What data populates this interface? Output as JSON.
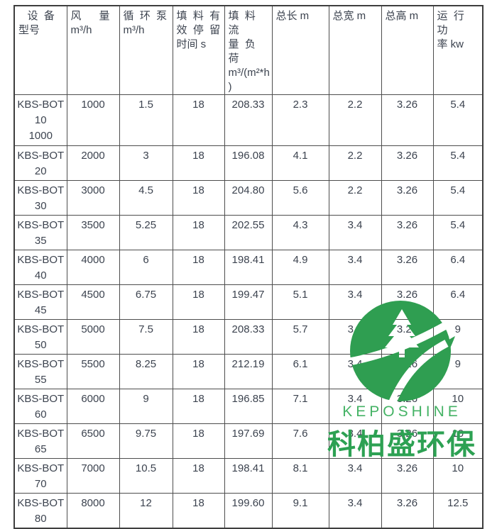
{
  "table": {
    "headers": [
      "   设  备\n型号",
      "风      量\nm³/h",
      "循  环  泵\nm³/h",
      "填  料  有\n效  停  留\n时间 s",
      "填  料  流\n量  负  荷\nm³/(m²*h\n)",
      "总长 m",
      "总宽 m",
      "总高 m",
      "运  行  功\n率 kw"
    ],
    "rows": [
      {
        "model": "KBS-BOT\n10\n1000",
        "values": [
          "1000",
          "1.5",
          "18",
          "208.33",
          "2.3",
          "2.2",
          "3.26",
          "5.4"
        ]
      },
      {
        "model": "KBS-BOT\n20",
        "values": [
          "2000",
          "3",
          "18",
          "196.08",
          "4.1",
          "2.2",
          "3.26",
          "5.4"
        ]
      },
      {
        "model": "KBS-BOT\n30",
        "values": [
          "3000",
          "4.5",
          "18",
          "204.80",
          "5.6",
          "2.2",
          "3.26",
          "5.4"
        ]
      },
      {
        "model": "KBS-BOT\n35",
        "values": [
          "3500",
          "5.25",
          "18",
          "202.55",
          "4.3",
          "3.4",
          "3.26",
          "5.4"
        ]
      },
      {
        "model": "KBS-BOT\n40",
        "values": [
          "4000",
          "6",
          "18",
          "198.41",
          "4.9",
          "3.4",
          "3.26",
          "6.4"
        ]
      },
      {
        "model": "KBS-BOT\n45",
        "values": [
          "4500",
          "6.75",
          "18",
          "199.47",
          "5.1",
          "3.4",
          "3.26",
          "6.4"
        ]
      },
      {
        "model": "KBS-BOT\n50",
        "values": [
          "5000",
          "7.5",
          "18",
          "208.33",
          "5.7",
          "3.4",
          "3.26",
          "9"
        ]
      },
      {
        "model": "KBS-BOT\n55",
        "values": [
          "5500",
          "8.25",
          "18",
          "212.19",
          "6.1",
          "3.4",
          "3.26",
          "9"
        ]
      },
      {
        "model": "KBS-BOT\n60",
        "values": [
          "6000",
          "9",
          "18",
          "196.85",
          "7.1",
          "3.4",
          "3.26",
          "10"
        ]
      },
      {
        "model": "KBS-BOT\n65",
        "values": [
          "6500",
          "9.75",
          "18",
          "197.69",
          "7.6",
          "3.4",
          "3.26",
          "10"
        ]
      },
      {
        "model": "KBS-BOT\n70",
        "values": [
          "7000",
          "10.5",
          "18",
          "198.41",
          "8.1",
          "3.4",
          "3.26",
          "10"
        ]
      },
      {
        "model": "KBS-BOT\n80",
        "values": [
          "8000",
          "12",
          "18",
          "199.60",
          "9.1",
          "3.4",
          "3.26",
          "12.5"
        ]
      }
    ]
  },
  "watermark": {
    "brand_en": "KEPOSHINE",
    "brand_cn": "科柏盛环保",
    "logo_green": "#2f9e51",
    "text_en_green": "#45b365",
    "text_cn_green": "#2da153"
  }
}
